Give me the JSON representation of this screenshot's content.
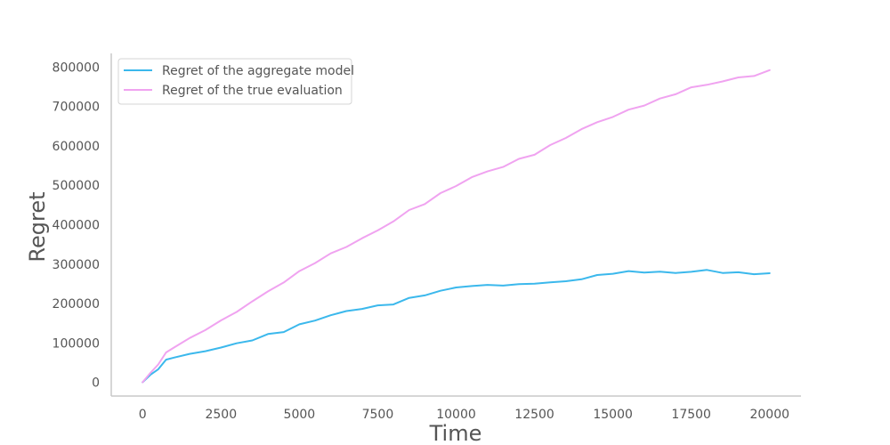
{
  "chart_data": {
    "type": "line",
    "title": "",
    "xlabel": "Time",
    "ylabel": "Regret",
    "xlim": [
      -1000,
      21000
    ],
    "ylim": [
      -35000,
      835000
    ],
    "xticks": [
      0,
      2500,
      5000,
      7500,
      10000,
      12500,
      15000,
      17500,
      20000
    ],
    "yticks": [
      0,
      100000,
      200000,
      300000,
      400000,
      500000,
      600000,
      700000,
      800000
    ],
    "grid": false,
    "legend_position": "upper-left",
    "series": [
      {
        "name": "Regret of the aggregate model",
        "color": "#3bb8ec",
        "x": [
          0,
          250,
          500,
          750,
          1000,
          1500,
          2000,
          2500,
          3000,
          3500,
          4000,
          4500,
          5000,
          5500,
          6000,
          6500,
          7000,
          7500,
          8000,
          8500,
          9000,
          9500,
          10000,
          10500,
          11000,
          11500,
          12000,
          12500,
          13000,
          13500,
          14000,
          14500,
          15000,
          15500,
          16000,
          16500,
          17000,
          17500,
          18000,
          18500,
          19000,
          19500,
          20000
        ],
        "values": [
          0,
          18000,
          35000,
          55000,
          65000,
          70000,
          80000,
          88000,
          98000,
          108000,
          120000,
          130000,
          145000,
          158000,
          170000,
          180000,
          188000,
          193000,
          200000,
          212000,
          222000,
          232000,
          240000,
          246000,
          245000,
          248000,
          247000,
          252000,
          253000,
          256000,
          263000,
          270000,
          278000,
          280000,
          280000,
          280000,
          277000,
          282000,
          283000,
          280000,
          277000,
          276000,
          276000
        ]
      },
      {
        "name": "Regret of the true evaluation",
        "color": "#f0a3f0",
        "x": [
          0,
          250,
          500,
          750,
          1000,
          1500,
          2000,
          2500,
          3000,
          3500,
          4000,
          4500,
          5000,
          5500,
          6000,
          6500,
          7000,
          7500,
          8000,
          8500,
          9000,
          9500,
          10000,
          10500,
          11000,
          11500,
          12000,
          12500,
          13000,
          13500,
          14000,
          14500,
          15000,
          15500,
          16000,
          16500,
          17000,
          17500,
          18000,
          18500,
          19000,
          19500,
          20000
        ],
        "values": [
          0,
          25000,
          45000,
          75000,
          90000,
          110000,
          135000,
          155000,
          180000,
          205000,
          230000,
          255000,
          280000,
          305000,
          325000,
          345000,
          365000,
          385000,
          410000,
          435000,
          455000,
          478000,
          500000,
          520000,
          535000,
          548000,
          565000,
          580000,
          600000,
          622000,
          642000,
          660000,
          675000,
          690000,
          705000,
          718000,
          733000,
          748000,
          755000,
          765000,
          772000,
          780000,
          790000
        ]
      }
    ]
  }
}
